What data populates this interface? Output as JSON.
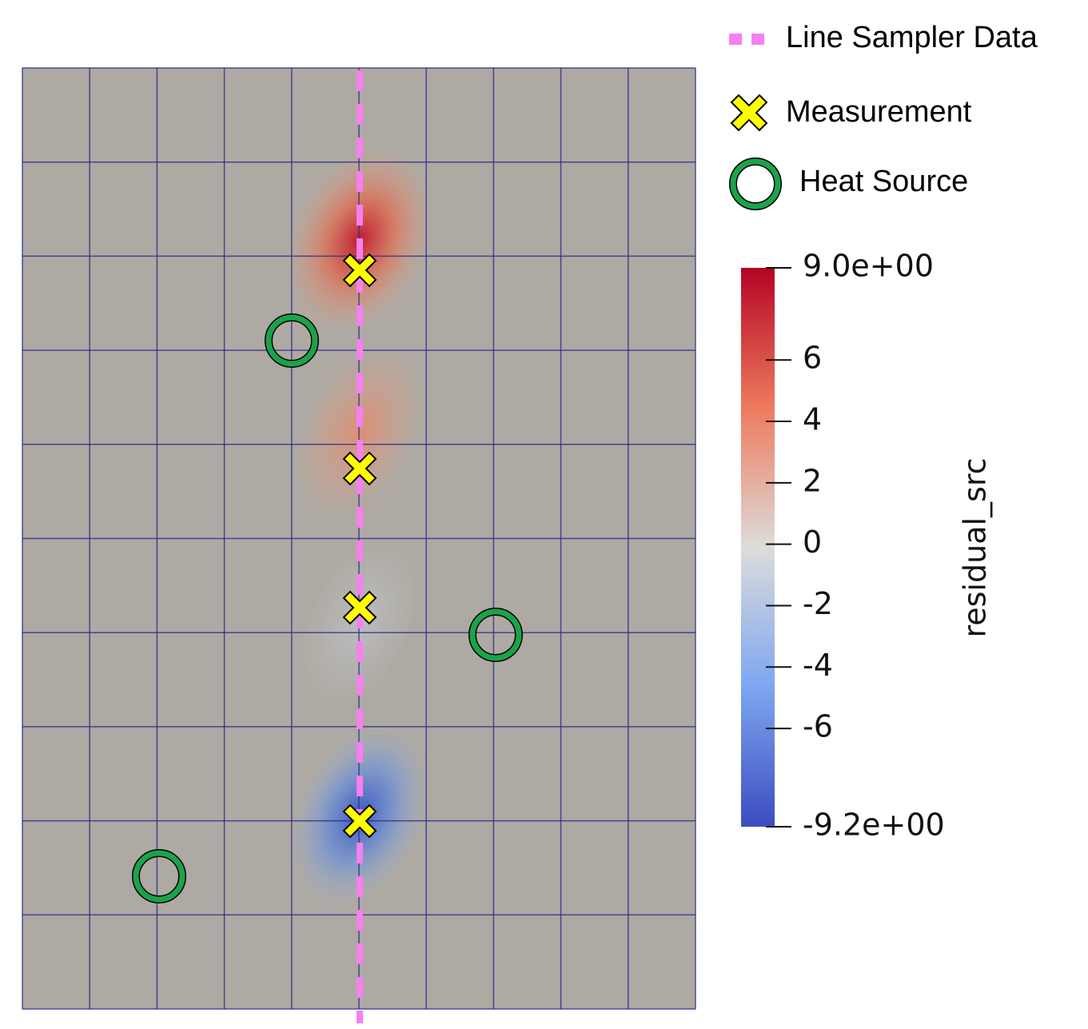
{
  "legend": {
    "items": [
      {
        "label": "Line Sampler Data"
      },
      {
        "label": "Measurement"
      },
      {
        "label": "Heat Source"
      }
    ]
  },
  "colorbar": {
    "title": "residual_src",
    "range": [
      -9.2,
      9.0
    ],
    "ticks": [
      {
        "value": 9.0,
        "label": "9.0e+00"
      },
      6,
      4,
      2,
      0,
      -2,
      -4,
      -6,
      {
        "value": -9.2,
        "label": "-9.2e+00"
      }
    ]
  }
}
